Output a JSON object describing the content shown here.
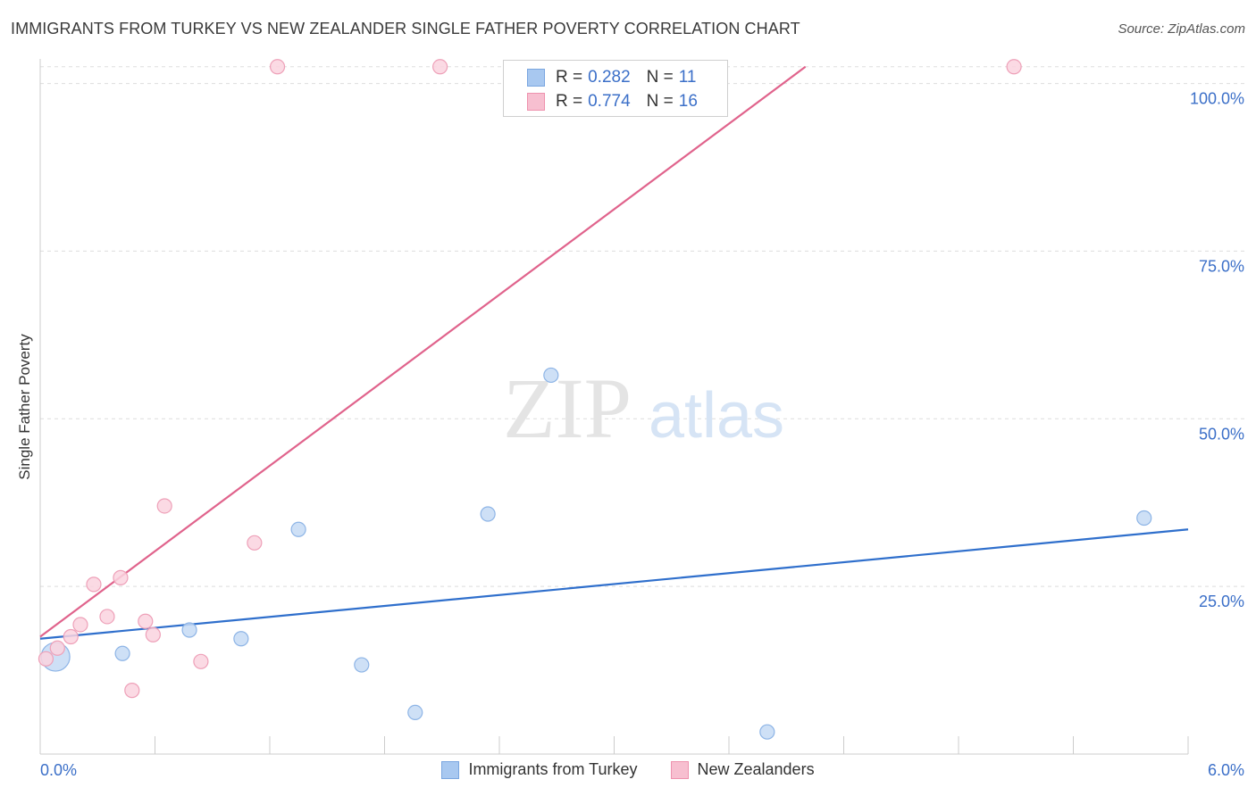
{
  "header": {
    "title": "IMMIGRANTS FROM TURKEY VS NEW ZEALANDER SINGLE FATHER POVERTY CORRELATION CHART",
    "source": "Source: ZipAtlas.com"
  },
  "watermark": {
    "zip": "ZIP",
    "atlas": "atlas"
  },
  "legend_box": {
    "rows": [
      {
        "r_label": "R =",
        "r_value": "0.282",
        "n_label": "N =",
        "n_value": "11",
        "color": "#a8c8f0",
        "border": "#7aa6e0"
      },
      {
        "r_label": "R =",
        "r_value": "0.774",
        "n_label": "N =",
        "n_value": "16",
        "color": "#f7bfd0",
        "border": "#ee92ae"
      }
    ]
  },
  "colors": {
    "blue_fill": "#c5daf5",
    "blue_stroke": "#8db4e6",
    "blue_line": "#2f6fcc",
    "pink_fill": "#fad3df",
    "pink_stroke": "#eea0b8",
    "pink_line": "#e0638c",
    "tick_text": "#3b6fc8",
    "grid": "#dddddd"
  },
  "chart_data": {
    "type": "scatter",
    "title": "IMMIGRANTS FROM TURKEY VS NEW ZEALANDER SINGLE FATHER POVERTY CORRELATION CHART",
    "xlabel": "",
    "ylabel": "Single Father Poverty",
    "xlim": [
      0,
      6
    ],
    "ylim": [
      0,
      105
    ],
    "x_tick_labels": [
      "0.0%",
      "6.0%"
    ],
    "y_ticks": [
      25,
      50,
      75,
      100
    ],
    "y_tick_labels": [
      "25.0%",
      "50.0%",
      "75.0%",
      "100.0%"
    ],
    "grid": true,
    "legend_position": "bottom",
    "series": [
      {
        "name": "Immigrants from Turkey",
        "points": [
          {
            "x": 0.08,
            "y": 14.5,
            "big": true
          },
          {
            "x": 0.43,
            "y": 15.0
          },
          {
            "x": 0.78,
            "y": 18.5
          },
          {
            "x": 1.05,
            "y": 17.2
          },
          {
            "x": 1.35,
            "y": 33.5
          },
          {
            "x": 1.68,
            "y": 13.3
          },
          {
            "x": 1.96,
            "y": 6.2
          },
          {
            "x": 2.34,
            "y": 35.8
          },
          {
            "x": 2.67,
            "y": 56.5
          },
          {
            "x": 3.8,
            "y": 3.3
          },
          {
            "x": 5.77,
            "y": 35.2
          }
        ],
        "trendline": {
          "x": [
            0,
            6
          ],
          "y": [
            17.2,
            33.5
          ]
        }
      },
      {
        "name": "New Zealanders",
        "points": [
          {
            "x": 0.03,
            "y": 14.2
          },
          {
            "x": 0.09,
            "y": 15.8
          },
          {
            "x": 0.16,
            "y": 17.5
          },
          {
            "x": 0.21,
            "y": 19.3
          },
          {
            "x": 0.28,
            "y": 25.3
          },
          {
            "x": 0.35,
            "y": 20.5
          },
          {
            "x": 0.42,
            "y": 26.3
          },
          {
            "x": 0.48,
            "y": 9.5
          },
          {
            "x": 0.55,
            "y": 19.8
          },
          {
            "x": 0.59,
            "y": 17.8
          },
          {
            "x": 0.65,
            "y": 37.0
          },
          {
            "x": 0.84,
            "y": 13.8
          },
          {
            "x": 1.12,
            "y": 31.5
          },
          {
            "x": 1.24,
            "y": 102.5
          },
          {
            "x": 2.09,
            "y": 102.5
          },
          {
            "x": 5.09,
            "y": 102.5
          }
        ],
        "trendline": {
          "x": [
            0,
            4.0
          ],
          "y": [
            17.5,
            102.5
          ]
        }
      }
    ]
  }
}
